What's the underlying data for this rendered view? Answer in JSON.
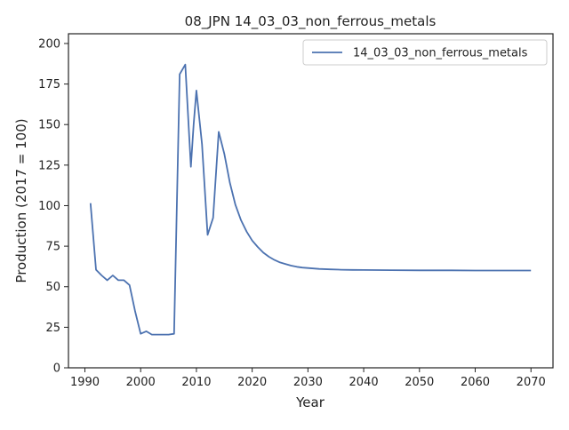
{
  "chart_data": {
    "type": "line",
    "title": "08_JPN 14_03_03_non_ferrous_metals",
    "xlabel": "Year",
    "ylabel": "Production (2017 = 100)",
    "xlim": [
      1987.05,
      2073.95
    ],
    "ylim": [
      0,
      206
    ],
    "xticks": [
      1990,
      2000,
      2010,
      2020,
      2030,
      2040,
      2050,
      2060,
      2070
    ],
    "yticks": [
      0,
      25,
      50,
      75,
      100,
      125,
      150,
      175,
      200
    ],
    "grid": false,
    "legend_position": "top-right",
    "series": [
      {
        "name": "14_03_03_non_ferrous_metals",
        "color": "#4c72b0",
        "x": [
          1991,
          1992,
          1993,
          1994,
          1995,
          1996,
          1997,
          1998,
          1999,
          2000,
          2001,
          2002,
          2003,
          2004,
          2005,
          2006,
          2007,
          2008,
          2009,
          2009.5,
          2010,
          2011,
          2012,
          2013,
          2014,
          2015,
          2016,
          2017,
          2018,
          2019,
          2020,
          2021,
          2022,
          2023,
          2024,
          2025,
          2026,
          2027,
          2028,
          2029,
          2030,
          2032,
          2034,
          2036,
          2038,
          2040,
          2045,
          2050,
          2055,
          2060,
          2065,
          2070
        ],
        "y": [
          101.5,
          60.5,
          57,
          54,
          57,
          54,
          54,
          51,
          35,
          21,
          22.5,
          20.5,
          20.5,
          20.5,
          20.5,
          21,
          181,
          187,
          124,
          150,
          171,
          138,
          82,
          92.5,
          145.5,
          132,
          114,
          100.5,
          91,
          84,
          78.5,
          74.5,
          71,
          68.5,
          66.5,
          65,
          64,
          63,
          62.3,
          61.8,
          61.5,
          61,
          60.7,
          60.5,
          60.4,
          60.3,
          60.2,
          60.1,
          60.1,
          60,
          60,
          60
        ]
      }
    ]
  }
}
